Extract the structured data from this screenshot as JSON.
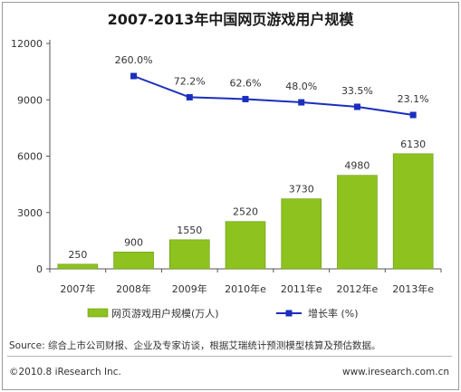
{
  "chart_data": {
    "type": "bar",
    "title": "2007-2013年中国网页游戏用户规模",
    "categories": [
      "2007年",
      "2008年",
      "2009年",
      "2010年e",
      "2011年e",
      "2012年e",
      "2013年e"
    ],
    "series": [
      {
        "name": "网页游戏用户规模(万人)",
        "type": "bar",
        "values": [
          250,
          900,
          1550,
          2520,
          3730,
          4980,
          6130
        ],
        "labels": [
          "250",
          "900",
          "1550",
          "2520",
          "3730",
          "4980",
          "6130"
        ]
      },
      {
        "name": "增长率 (%)",
        "type": "line",
        "values": [
          null,
          260.0,
          72.2,
          62.6,
          48.0,
          33.5,
          23.1
        ],
        "labels": [
          "",
          "260.0%",
          "72.2%",
          "62.6%",
          "48.0%",
          "33.5%",
          "23.1%"
        ]
      }
    ],
    "yticks": [
      "0",
      "3000",
      "6000",
      "9000",
      "12000"
    ],
    "ylim": [
      0,
      12000
    ],
    "grid": false,
    "legend_position": "bottom"
  },
  "colors": {
    "bar": "#8dc21f",
    "line": "#1a2fbd"
  },
  "footer": {
    "source": "Source: 综合上市公司财报、企业及专家访谈，根据艾瑞统计预测模型核算及预估数据。",
    "copyright": "©2010.8 iResearch Inc.",
    "website": "www.iresearch.com.cn"
  }
}
